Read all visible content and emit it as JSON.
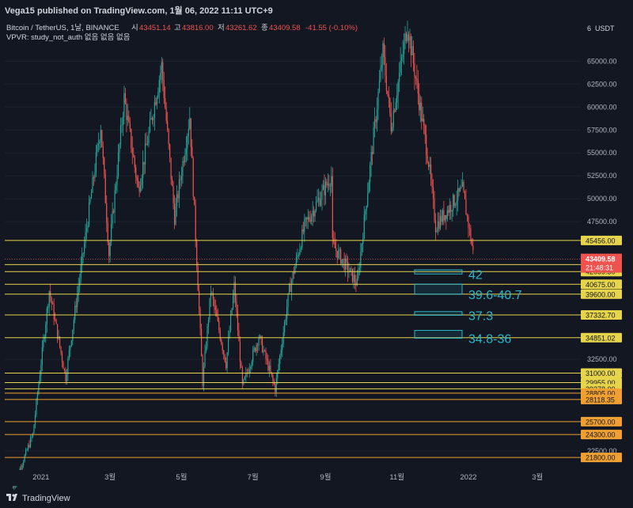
{
  "published_line": "Vega15 published on TradingView.com, 1월 06, 2022 11:11 UTC+9",
  "brand": "TradingView",
  "header": {
    "title": "Bitcoin / TetherUS, 1날, BINANCE",
    "o_label": "시",
    "o_value": "43451.14",
    "h_label": "고",
    "h_value": "43816.00",
    "l_label": "저",
    "l_value": "43261.62",
    "c_label": "종",
    "c_value": "43409.58",
    "change": "-41.55 (-0.10%)",
    "indicator": "VPVR: study_not_auth 없음 없음 없음"
  },
  "colors": {
    "background": "#131722",
    "up": "#26a69a",
    "down": "#ef5350",
    "level_yellow": "#e6d44a",
    "level_orange": "#f0a030",
    "zone": "#2ab7ca",
    "price_badge": "#ef5350"
  },
  "chart_data": {
    "type": "candlestick",
    "symbol": "BTCUSDT",
    "interval": "1D",
    "currency_label": "USDT",
    "y_axis_ticks": [
      65000,
      62500,
      60000,
      57500,
      55000,
      52500,
      50000,
      47500,
      32500,
      22500
    ],
    "y_tick_labels": [
      "65000.00",
      "62500.00",
      "60000.00",
      "57500.00",
      "55000.00",
      "52500.00",
      "50000.00",
      "47500.00",
      "32500.00",
      "22500.00"
    ],
    "top_partial_label": "6",
    "x_axis_labels": [
      "2021",
      "3월",
      "5월",
      "7월",
      "9월",
      "11월",
      "2022",
      "3월"
    ],
    "ylim": [
      20600,
      69600
    ],
    "last_price": 43409.58,
    "countdown": "21:48:31",
    "price_path": [
      [
        "2020-12-08",
        18500
      ],
      [
        "2020-12-25",
        24300
      ],
      [
        "2021-01-08",
        40000
      ],
      [
        "2021-01-22",
        30500
      ],
      [
        "2021-02-08",
        46000
      ],
      [
        "2021-02-21",
        58000
      ],
      [
        "2021-02-28",
        44000
      ],
      [
        "2021-03-13",
        61000
      ],
      [
        "2021-03-25",
        51000
      ],
      [
        "2021-04-14",
        64500
      ],
      [
        "2021-04-25",
        48000
      ],
      [
        "2021-05-08",
        59000
      ],
      [
        "2021-05-19",
        30000
      ],
      [
        "2021-05-26",
        40000
      ],
      [
        "2021-06-08",
        32000
      ],
      [
        "2021-06-15",
        40500
      ],
      [
        "2021-06-22",
        29500
      ],
      [
        "2021-07-06",
        35000
      ],
      [
        "2021-07-20",
        29300
      ],
      [
        "2021-08-01",
        40000
      ],
      [
        "2021-08-14",
        47000
      ],
      [
        "2021-09-06",
        52500
      ],
      [
        "2021-09-07",
        45000
      ],
      [
        "2021-09-28",
        40700
      ],
      [
        "2021-10-20",
        66000
      ],
      [
        "2021-10-27",
        58000
      ],
      [
        "2021-11-10",
        69000
      ],
      [
        "2021-11-28",
        54000
      ],
      [
        "2021-12-04",
        47000
      ],
      [
        "2021-12-27",
        51000
      ],
      [
        "2022-01-06",
        43409.58
      ]
    ],
    "levels": [
      {
        "price": 45456.0,
        "label": "45456.00",
        "color": "#e6d44a"
      },
      {
        "price": 42824.62,
        "label": "42824.62",
        "color": "#e6d44a"
      },
      {
        "price": 42059.5,
        "label": "42059.50",
        "color": "#e6d44a"
      },
      {
        "price": 40675.0,
        "label": "40675.00",
        "color": "#e6d44a"
      },
      {
        "price": 39600.0,
        "label": "39600.00",
        "color": "#e6d44a"
      },
      {
        "price": 37332.7,
        "label": "37332.70",
        "color": "#e6d44a"
      },
      {
        "price": 34851.02,
        "label": "34851.02",
        "color": "#e6d44a"
      },
      {
        "price": 31000.0,
        "label": "31000.00",
        "color": "#e6d44a"
      },
      {
        "price": 29955.0,
        "label": "29955.00",
        "color": "#e6d44a"
      },
      {
        "price": 29278.0,
        "label": "29278.00",
        "color": "#e6d44a"
      },
      {
        "price": 28805.0,
        "label": "28805.00",
        "color": "#f0a030"
      },
      {
        "price": 28118.35,
        "label": "28118.35",
        "color": "#f0a030"
      },
      {
        "price": 25700.0,
        "label": "25700.00",
        "color": "#f0a030"
      },
      {
        "price": 24300.0,
        "label": "24300.00",
        "color": "#f0a030"
      },
      {
        "price": 21800.0,
        "label": "21800.00",
        "color": "#f0a030"
      }
    ],
    "zones": [
      {
        "low": 41800,
        "high": 42250,
        "label": "42"
      },
      {
        "low": 39600,
        "high": 40700,
        "label": "39.6-40.7"
      },
      {
        "low": 37300,
        "high": 37700,
        "label": "37.3"
      },
      {
        "low": 34800,
        "high": 35650,
        "label": "34.8-36"
      }
    ]
  }
}
